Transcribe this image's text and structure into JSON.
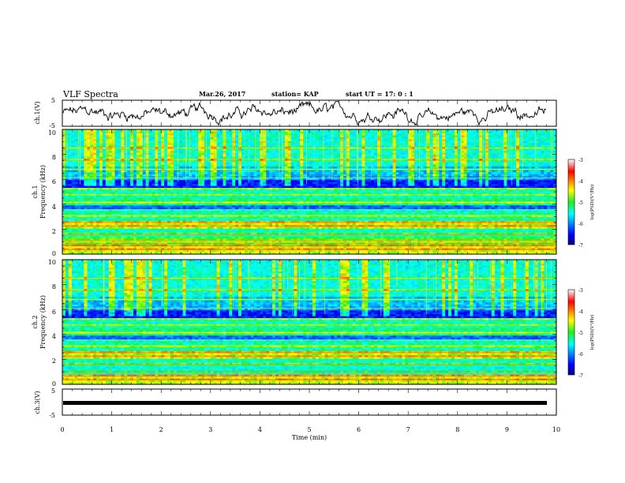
{
  "header": {
    "title": "VLF Spectra",
    "date": "Mar.26, 2017",
    "station": "station= KAP",
    "start": "start  UT =  17: 0 : 1"
  },
  "chart_data": [
    {
      "type": "line",
      "panel": "ch1-waveform",
      "ylabel": "ch.1(V)",
      "ylim": [
        -5,
        5
      ],
      "yticks": [
        "5",
        "-5"
      ],
      "xlim": [
        0,
        10
      ],
      "trace_color": "#000000"
    },
    {
      "type": "heatmap",
      "panel": "ch1-spectrogram",
      "ylabel_lines": [
        "ch.1",
        "Frequency  (kHz)"
      ],
      "ylim": [
        0,
        10
      ],
      "yticks": [
        "10",
        "8",
        "6",
        "4",
        "2",
        "0"
      ],
      "xlim": [
        0,
        10
      ],
      "colorbar": {
        "label": "log(PSD)(V²/Hz)",
        "range": [
          -7,
          -3
        ],
        "ticks": [
          "-3",
          "-4",
          "-5",
          "-6",
          "-7"
        ]
      }
    },
    {
      "type": "heatmap",
      "panel": "ch2-spectrogram",
      "ylabel_lines": [
        "ch.2",
        "Frequency  (kHz)"
      ],
      "ylim": [
        0,
        10
      ],
      "yticks": [
        "10",
        "8",
        "6",
        "4",
        "2",
        "0"
      ],
      "xlim": [
        0,
        10
      ],
      "colorbar": {
        "label": "log(PSD)(V²/Hz)",
        "range": [
          -7,
          -3
        ],
        "ticks": [
          "-3",
          "-4",
          "-5",
          "-6",
          "-7"
        ]
      }
    },
    {
      "type": "line",
      "panel": "ch3-waveform",
      "ylabel": "ch.3(V)",
      "ylim": [
        -5,
        5
      ],
      "yticks": [
        "5",
        "-5"
      ],
      "xlim": [
        0,
        10
      ],
      "xlabel": "Time  (min)",
      "xticks": [
        "0",
        "1",
        "2",
        "3",
        "4",
        "5",
        "6",
        "7",
        "8",
        "9",
        "10"
      ],
      "trace_color": "#000000"
    }
  ]
}
